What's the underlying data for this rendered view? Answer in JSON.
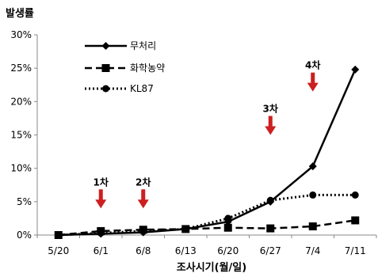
{
  "chart_data": {
    "type": "line",
    "title": "",
    "ylabel": "발생률",
    "xlabel": "조사시기(월/일)",
    "categories": [
      "5/20",
      "6/1",
      "6/8",
      "6/13",
      "6/20",
      "6/27",
      "7/4",
      "7/11"
    ],
    "ylim": [
      0,
      30
    ],
    "y_ticks": [
      "0%",
      "5%",
      "10%",
      "15%",
      "20%",
      "25%",
      "30%"
    ],
    "grid": false,
    "legend_position": "top-left",
    "series": [
      {
        "name": "무처리",
        "values": [
          0,
          0.2,
          0.4,
          0.9,
          2.0,
          5.0,
          10.3,
          24.8
        ],
        "style": "solid",
        "marker": "diamond",
        "color": "#000000"
      },
      {
        "name": "화학농약",
        "values": [
          0,
          0.6,
          0.8,
          0.9,
          1.1,
          1.0,
          1.3,
          2.2
        ],
        "style": "dashed",
        "marker": "square",
        "color": "#000000"
      },
      {
        "name": "KL87",
        "values": [
          0,
          0.3,
          0.6,
          0.9,
          2.5,
          5.2,
          6.0,
          6.0
        ],
        "style": "dotted",
        "marker": "circle",
        "color": "#000000"
      }
    ],
    "annotations": [
      {
        "label": "1차",
        "category": "6/1",
        "y_value": 4.0,
        "color": "#cc1f1f"
      },
      {
        "label": "2차",
        "category": "6/8",
        "y_value": 4.0,
        "color": "#cc1f1f"
      },
      {
        "label": "3차",
        "category": "6/27",
        "y_value": 15.0,
        "color": "#cc1f1f"
      },
      {
        "label": "4차",
        "category": "7/4",
        "y_value": 21.5,
        "color": "#cc1f1f"
      }
    ]
  }
}
